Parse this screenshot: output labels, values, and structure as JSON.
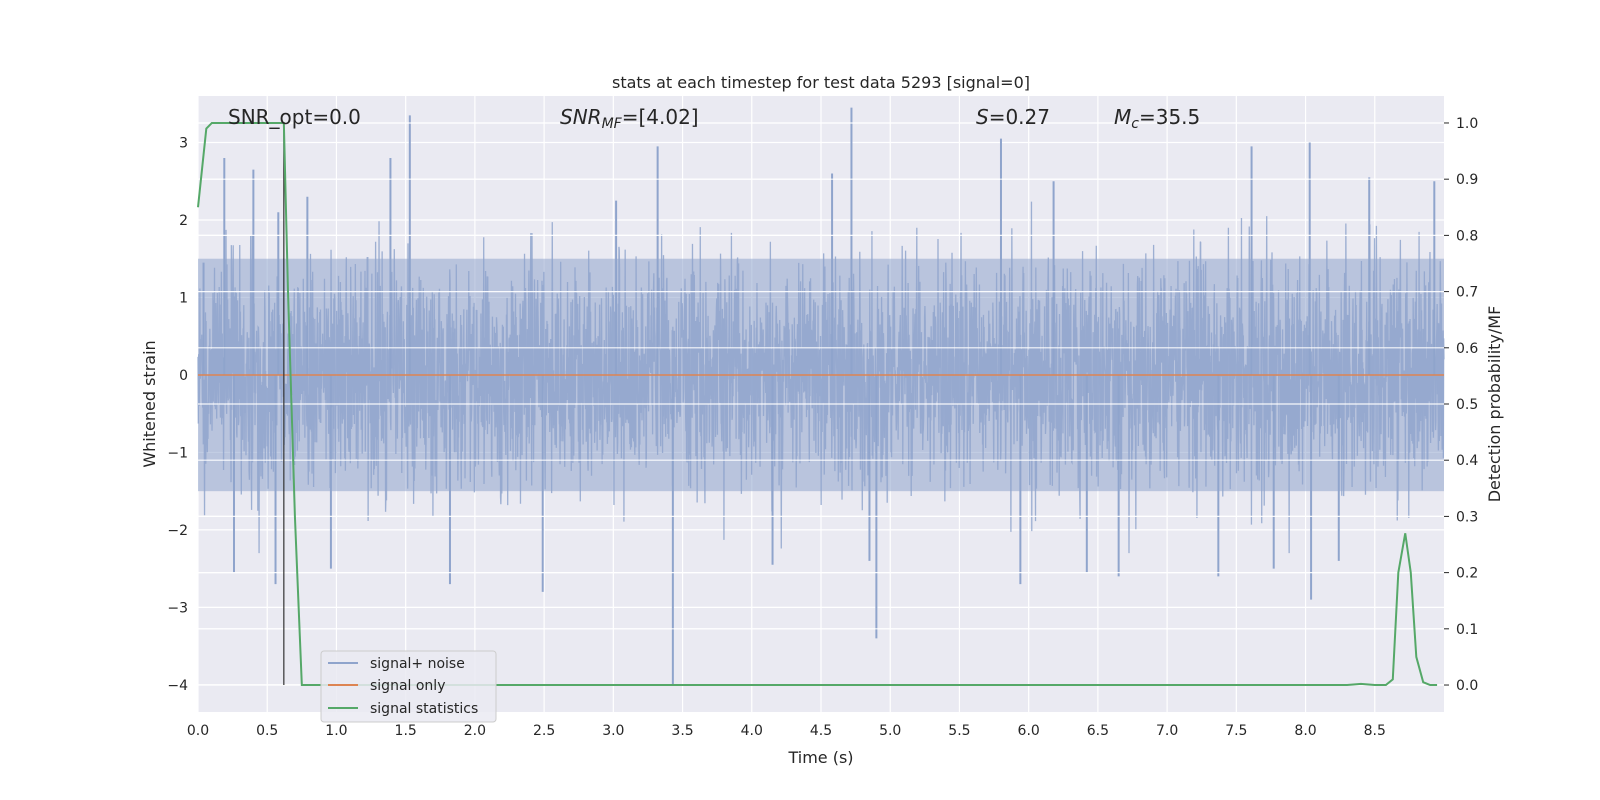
{
  "chart_data": {
    "type": "line",
    "title": "stats at each timestep for test data 5293 [signal=0]",
    "xlabel": "Time (s)",
    "ylabel": "Whitened strain",
    "y2label": "Detection probability/MF",
    "xlim": [
      0.0,
      9.0
    ],
    "ylim": [
      -4.35,
      3.6
    ],
    "y2lim": [
      -0.048,
      1.048
    ],
    "x_ticks": [
      "0.0",
      "0.5",
      "1.0",
      "1.5",
      "2.0",
      "2.5",
      "3.0",
      "3.5",
      "4.0",
      "4.5",
      "5.0",
      "5.5",
      "6.0",
      "6.5",
      "7.0",
      "7.5",
      "8.0",
      "8.5"
    ],
    "y_ticks": [
      "3",
      "2",
      "1",
      "0",
      "−1",
      "−2",
      "−3",
      "−4"
    ],
    "y2_ticks": [
      "1.0",
      "0.9",
      "0.8",
      "0.7",
      "0.6",
      "0.5",
      "0.4",
      "0.3",
      "0.2",
      "0.1",
      "0.0"
    ],
    "grid": true,
    "legend_location": "lower-left",
    "annotations": {
      "snr_opt": "SNR_opt=0.0",
      "snr_mf_name": "SNR",
      "snr_mf_sub": "MF",
      "snr_mf_value": "=[4.02]",
      "s_name": "S",
      "s_value": "=0.27",
      "mc_name": "M",
      "mc_sub": "c",
      "mc_value": "=35.5"
    },
    "vertical_marker_x": 0.62,
    "series": [
      {
        "name": "signal+ noise",
        "color": "#8fa4cc",
        "axis": "left",
        "style": "dense-noise",
        "typical_band": [
          -1.5,
          1.5
        ],
        "spikes": [
          {
            "x": 0.04,
            "y": 1.45
          },
          {
            "x": 0.19,
            "y": 2.8
          },
          {
            "x": 0.26,
            "y": -2.55
          },
          {
            "x": 0.4,
            "y": 2.65
          },
          {
            "x": 0.56,
            "y": -2.7
          },
          {
            "x": 0.58,
            "y": 2.1
          },
          {
            "x": 0.79,
            "y": 2.3
          },
          {
            "x": 0.96,
            "y": -2.5
          },
          {
            "x": 1.53,
            "y": 3.35
          },
          {
            "x": 1.39,
            "y": 2.8
          },
          {
            "x": 1.82,
            "y": -2.7
          },
          {
            "x": 2.49,
            "y": -2.8
          },
          {
            "x": 3.32,
            "y": 2.95
          },
          {
            "x": 3.43,
            "y": -4.0
          },
          {
            "x": 3.02,
            "y": 2.25
          },
          {
            "x": 4.15,
            "y": -2.45
          },
          {
            "x": 4.58,
            "y": 2.6
          },
          {
            "x": 4.72,
            "y": 3.45
          },
          {
            "x": 4.9,
            "y": -3.4
          },
          {
            "x": 4.85,
            "y": -2.4
          },
          {
            "x": 5.8,
            "y": 3.05
          },
          {
            "x": 5.94,
            "y": -2.7
          },
          {
            "x": 6.42,
            "y": -2.55
          },
          {
            "x": 6.65,
            "y": -2.6
          },
          {
            "x": 7.37,
            "y": -2.6
          },
          {
            "x": 7.61,
            "y": 2.95
          },
          {
            "x": 7.77,
            "y": -2.5
          },
          {
            "x": 8.03,
            "y": 3.0
          },
          {
            "x": 8.04,
            "y": -2.9
          },
          {
            "x": 8.46,
            "y": 2.55
          },
          {
            "x": 8.24,
            "y": -2.4
          },
          {
            "x": 8.93,
            "y": 2.5
          },
          {
            "x": 6.18,
            "y": 2.5
          }
        ]
      },
      {
        "name": "signal only",
        "color": "#dd8452",
        "axis": "left",
        "x": [
          0.0,
          9.0
        ],
        "y": [
          0.0,
          0.0
        ]
      },
      {
        "name": "signal statistics",
        "color": "#55a868",
        "axis": "right",
        "x": [
          0.0,
          0.06,
          0.1,
          0.15,
          0.2,
          0.3,
          0.4,
          0.5,
          0.55,
          0.62,
          0.65,
          0.7,
          0.75,
          0.8,
          1.0,
          2.0,
          3.0,
          4.0,
          5.0,
          6.0,
          7.0,
          8.0,
          8.3,
          8.4,
          8.5,
          8.58,
          8.63,
          8.67,
          8.72,
          8.76,
          8.8,
          8.85,
          8.9,
          8.95
        ],
        "y": [
          0.85,
          0.99,
          1.0,
          1.0,
          1.0,
          1.0,
          1.0,
          1.0,
          1.0,
          1.0,
          0.7,
          0.3,
          0.0,
          0.0,
          0.0,
          0.0,
          0.0,
          0.0,
          0.0,
          0.0,
          0.0,
          0.0,
          0.0,
          0.002,
          0.0,
          0.0,
          0.01,
          0.2,
          0.27,
          0.2,
          0.05,
          0.005,
          0.0,
          0.0
        ]
      }
    ]
  }
}
